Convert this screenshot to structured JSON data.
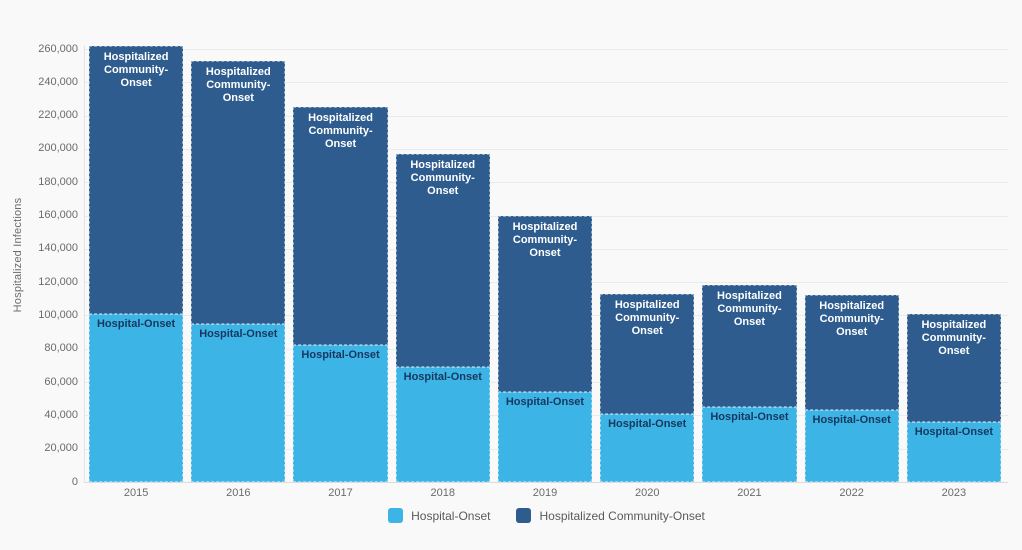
{
  "page": {
    "background": "#f9f9f9"
  },
  "colors": {
    "hospital_onset": "#3CB4E5",
    "community_onset": "#2E5C8E",
    "grid": "#ebebeb",
    "axis_line": "#dcdcdc",
    "tick_text": "#6b6b6b",
    "legend_text": "#5a5a5a",
    "label_on_light": "#17375E",
    "label_on_dark": "#FFFFFF"
  },
  "chart_data": {
    "type": "bar",
    "stacked": true,
    "title": "",
    "xlabel": "",
    "ylabel": "Hospitalized Infections",
    "categories": [
      "2015",
      "2016",
      "2017",
      "2018",
      "2019",
      "2020",
      "2021",
      "2022",
      "2023"
    ],
    "series": [
      {
        "name": "Hospital-Onset",
        "color": "#3CB4E5",
        "label_color": "#17375E",
        "label_lines": [
          "Hospital-Onset"
        ],
        "values": [
          101000,
          95000,
          82000,
          69000,
          54000,
          41000,
          45000,
          43000,
          36000
        ]
      },
      {
        "name": "Hospitalized Community-Onset",
        "color": "#2E5C8E",
        "label_color": "#FFFFFF",
        "label_lines": [
          "Hospitalized",
          "Community-Onset"
        ],
        "values": [
          161000,
          158000,
          143000,
          128000,
          106000,
          72000,
          73000,
          69000,
          65000
        ]
      }
    ],
    "stack_totals": [
      262000,
      253000,
      225000,
      197000,
      160000,
      113000,
      118000,
      112000,
      101000
    ],
    "ylim": [
      0,
      260000
    ],
    "ytick_step": 20000,
    "ytick_labels": [
      "0",
      "20,000",
      "40,000",
      "60,000",
      "80,000",
      "100,000",
      "120,000",
      "140,000",
      "160,000",
      "180,000",
      "200,000",
      "220,000",
      "240,000",
      "260,000"
    ],
    "grid": true,
    "legend_position": "bottom"
  },
  "legend": {
    "items": [
      {
        "label": "Hospital-Onset",
        "color": "#3CB4E5"
      },
      {
        "label": "Hospitalized Community-Onset",
        "color": "#2E5C8E"
      }
    ]
  }
}
